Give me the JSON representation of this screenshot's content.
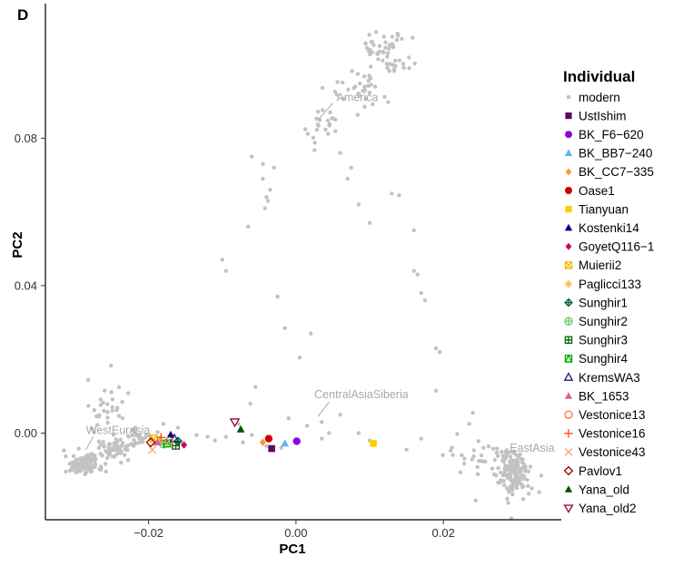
{
  "chart_data": {
    "type": "scatter",
    "panel_label": "D",
    "xlabel": "PC1",
    "ylabel": "PC2",
    "xlim": [
      -0.034,
      0.036
    ],
    "ylim": [
      -0.0235,
      0.1165
    ],
    "x_ticks": [
      {
        "value": -0.02,
        "label": "−0.02"
      },
      {
        "value": 0.0,
        "label": "0.00"
      },
      {
        "value": 0.02,
        "label": "0.02"
      }
    ],
    "y_ticks": [
      {
        "value": 0.0,
        "label": "0.00"
      },
      {
        "value": 0.04,
        "label": "0.04"
      },
      {
        "value": 0.08,
        "label": "0.08"
      }
    ],
    "grid": false,
    "legend": {
      "title": "Individual",
      "placement": "right"
    },
    "annotations": [
      {
        "text": "America",
        "x": 0.0055,
        "y": 0.09
      },
      {
        "text": "CentralAsiaSiberia",
        "x": 0.0025,
        "y": 0.0095
      },
      {
        "text": "WestEurasia",
        "x": -0.0285,
        "y": -0.0003
      },
      {
        "text": "EastAsia",
        "x": 0.029,
        "y": -0.005
      }
    ],
    "modern_clusters": [
      {
        "cx": -0.0288,
        "cy": -0.0085,
        "sx": 0.0013,
        "sy": 0.0013,
        "n": 140
      },
      {
        "cx": -0.0245,
        "cy": -0.0045,
        "sx": 0.001,
        "sy": 0.0012,
        "n": 45
      },
      {
        "cx": -0.021,
        "cy": -0.001,
        "sx": 0.0015,
        "sy": 0.001,
        "n": 30
      },
      {
        "cx": -0.0255,
        "cy": 0.006,
        "sx": 0.0015,
        "sy": 0.004,
        "n": 35
      },
      {
        "cx": 0.0295,
        "cy": -0.011,
        "sx": 0.0012,
        "sy": 0.003,
        "n": 160
      },
      {
        "cx": 0.0245,
        "cy": -0.006,
        "sx": 0.002,
        "sy": 0.0025,
        "n": 25
      },
      {
        "cx": 0.0125,
        "cy": 0.1025,
        "sx": 0.0018,
        "sy": 0.004,
        "n": 55
      },
      {
        "cx": 0.008,
        "cy": 0.0935,
        "sx": 0.0018,
        "sy": 0.003,
        "n": 30
      },
      {
        "cx": 0.0035,
        "cy": 0.0835,
        "sx": 0.0015,
        "sy": 0.0035,
        "n": 22
      }
    ],
    "modern_sparse": [
      [
        -0.0045,
        0.069
      ],
      [
        -0.004,
        0.064
      ],
      [
        -0.0035,
        0.066
      ],
      [
        -0.0042,
        0.061
      ],
      [
        -0.003,
        0.072
      ],
      [
        -0.0038,
        0.063
      ],
      [
        -0.0065,
        0.056
      ],
      [
        -0.01,
        0.047
      ],
      [
        -0.0095,
        0.044
      ],
      [
        -0.0025,
        0.037
      ],
      [
        -0.0015,
        0.0285
      ],
      [
        0.002,
        0.027
      ],
      [
        0.0005,
        0.0205
      ],
      [
        -0.0055,
        0.0125
      ],
      [
        -0.0062,
        0.008
      ],
      [
        -0.001,
        0.004
      ],
      [
        0.0015,
        0.002
      ],
      [
        0.0035,
        -0.0015
      ],
      [
        0.0045,
        0.0
      ],
      [
        0.0085,
        0.0
      ],
      [
        0.01,
        -0.002
      ],
      [
        0.006,
        0.005
      ],
      [
        0.0035,
        0.003
      ],
      [
        0.006,
        0.076
      ],
      [
        0.0075,
        0.072
      ],
      [
        0.007,
        0.069
      ],
      [
        0.0085,
        0.062
      ],
      [
        0.01,
        0.057
      ],
      [
        0.013,
        0.065
      ],
      [
        0.014,
        0.0645
      ],
      [
        0.016,
        0.055
      ],
      [
        0.016,
        0.044
      ],
      [
        0.0165,
        0.043
      ],
      [
        0.017,
        0.038
      ],
      [
        0.0175,
        0.036
      ],
      [
        0.019,
        0.023
      ],
      [
        0.0195,
        0.022
      ],
      [
        0.019,
        0.0115
      ],
      [
        0.024,
        0.0055
      ],
      [
        0.0235,
        0.0025
      ],
      [
        0.0225,
        -0.006
      ],
      [
        0.017,
        -0.0015
      ],
      [
        0.015,
        -0.0045
      ],
      [
        0.033,
        -0.016
      ],
      [
        0.032,
        -0.015
      ],
      [
        -0.006,
        -0.0005
      ],
      [
        -0.0095,
        -0.001
      ],
      [
        -0.012,
        -0.001
      ],
      [
        -0.0135,
        -0.0005
      ],
      [
        -0.011,
        -0.002
      ],
      [
        -0.0072,
        -0.0025
      ],
      [
        -0.004,
        -0.0035
      ],
      [
        -0.002,
        -0.004
      ],
      [
        -0.0078,
        0.0025
      ],
      [
        -0.016,
        0.0015
      ],
      [
        -0.018,
        0.0025
      ],
      [
        -0.006,
        0.075
      ],
      [
        -0.0045,
        0.073
      ]
    ],
    "series": [
      {
        "name": "modern",
        "shape": "dot",
        "color": "#c2c2c2",
        "points": []
      },
      {
        "name": "UstIshim",
        "shape": "square",
        "color": "#5c0a5c",
        "points": [
          [
            -0.0033,
            -0.0042
          ]
        ]
      },
      {
        "name": "BK_F6−620",
        "shape": "circle",
        "color": "#8f00e6",
        "points": [
          [
            0.0001,
            -0.0022
          ]
        ]
      },
      {
        "name": "BK_BB7−240",
        "shape": "triangle",
        "color": "#5fb6f0",
        "points": [
          [
            -0.0015,
            -0.0028
          ]
        ]
      },
      {
        "name": "BK_CC7−335",
        "shape": "diamond",
        "color": "#ff9933",
        "points": [
          [
            -0.0045,
            -0.0025
          ]
        ]
      },
      {
        "name": "Oase1",
        "shape": "circle",
        "color": "#cc0000",
        "points": [
          [
            -0.0037,
            -0.0015
          ]
        ]
      },
      {
        "name": "Tianyuan",
        "shape": "square",
        "color": "#ffcc00",
        "points": [
          [
            0.0105,
            -0.0028
          ]
        ]
      },
      {
        "name": "Kostenki14",
        "shape": "triangle",
        "color": "#00008b",
        "points": [
          [
            -0.017,
            -0.0005
          ]
        ]
      },
      {
        "name": "GoyetQ116−1",
        "shape": "diamond",
        "color": "#cc0066",
        "points": [
          [
            -0.0152,
            -0.0032
          ]
        ]
      },
      {
        "name": "Muierii2",
        "shape": "boxx",
        "color": "#f0b800",
        "points": [
          [
            -0.0193,
            -0.0015
          ]
        ]
      },
      {
        "name": "Paglicci133",
        "shape": "asterisk",
        "color": "#ffb84d",
        "points": [
          [
            -0.0185,
            -0.002
          ]
        ]
      },
      {
        "name": "Sunghir1",
        "shape": "diamondplus",
        "color": "#006633",
        "points": [
          [
            -0.016,
            -0.0022
          ]
        ]
      },
      {
        "name": "Sunghir2",
        "shape": "circleplus",
        "color": "#66cc66",
        "points": [
          [
            -0.018,
            -0.003
          ]
        ]
      },
      {
        "name": "Sunghir3",
        "shape": "squareplus",
        "color": "#006600",
        "points": [
          [
            -0.0163,
            -0.0034
          ]
        ]
      },
      {
        "name": "Sunghir4",
        "shape": "squaretri",
        "color": "#00aa00",
        "points": [
          [
            -0.0175,
            -0.0028
          ]
        ]
      },
      {
        "name": "KremsWA3",
        "shape": "triangleopen",
        "color": "#1a1a80",
        "points": [
          [
            -0.0165,
            -0.0015
          ]
        ]
      },
      {
        "name": "BK_1653",
        "shape": "triangle",
        "color": "#e06090",
        "points": [
          [
            -0.0188,
            -0.0025
          ]
        ]
      },
      {
        "name": "Vestonice13",
        "shape": "circleopen",
        "color": "#ff7733",
        "points": [
          [
            -0.0172,
            -0.0022
          ]
        ]
      },
      {
        "name": "Vestonice16",
        "shape": "plus",
        "color": "#ff4d1a",
        "points": [
          [
            -0.0183,
            -0.0012
          ]
        ]
      },
      {
        "name": "Vestonice43",
        "shape": "cross",
        "color": "#ffa080",
        "points": [
          [
            -0.0195,
            -0.0045
          ]
        ]
      },
      {
        "name": "Pavlov1",
        "shape": "diamondopen",
        "color": "#990000",
        "points": [
          [
            -0.0197,
            -0.0025
          ]
        ]
      },
      {
        "name": "Yana_old",
        "shape": "triangle",
        "color": "#005500",
        "points": [
          [
            -0.0075,
            0.001
          ]
        ]
      },
      {
        "name": "Yana_old2",
        "shape": "triangledown",
        "color": "#990033",
        "points": [
          [
            -0.0083,
            0.003
          ]
        ]
      }
    ]
  }
}
